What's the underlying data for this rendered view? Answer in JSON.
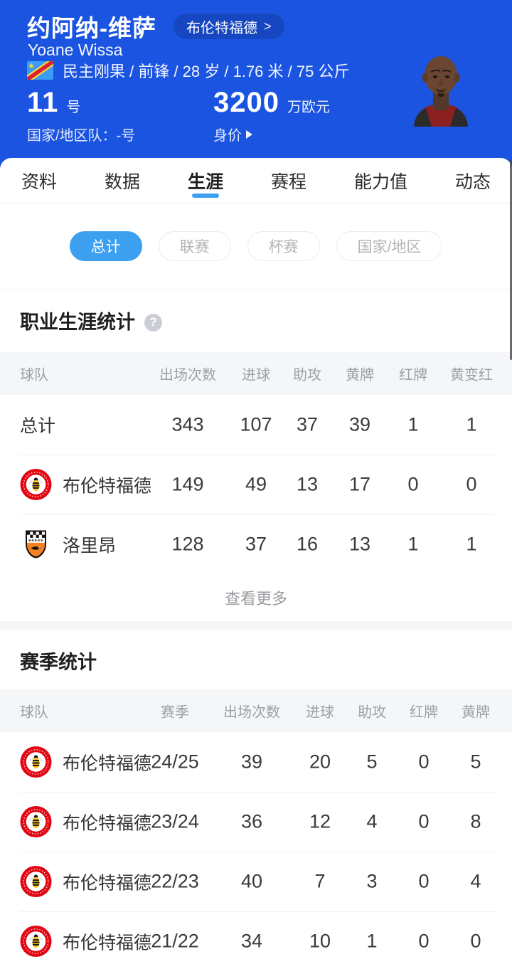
{
  "header": {
    "player_name_cn": "约阿纳-维萨",
    "club_chip": {
      "label": "布伦特福德",
      "chevron": ">"
    },
    "player_name_en": "Yoane Wissa",
    "flag_icon": "dr-congo-flag",
    "info_line": "民主刚果 / 前锋 / 28 岁 / 1.76 米 / 75 公斤",
    "shirt_number": "11",
    "shirt_number_suffix": "号",
    "national_team_line": "国家/地区队：-号",
    "market_value": "3200",
    "market_value_unit": "万欧元",
    "market_value_label": "身价",
    "photo_icon": "player-photo"
  },
  "tabs": {
    "items": [
      {
        "label": "资料",
        "active": false
      },
      {
        "label": "数据",
        "active": false
      },
      {
        "label": "生涯",
        "active": true
      },
      {
        "label": "赛程",
        "active": false
      },
      {
        "label": "能力值",
        "active": false
      },
      {
        "label": "动态",
        "active": false
      }
    ]
  },
  "filters": {
    "items": [
      {
        "label": "总计",
        "active": true
      },
      {
        "label": "联赛",
        "active": false
      },
      {
        "label": "杯赛",
        "active": false
      },
      {
        "label": "国家/地区",
        "active": false
      }
    ]
  },
  "career_section": {
    "title": "职业生涯统计",
    "help_icon": "question-mark",
    "columns": [
      "球队",
      "出场次数",
      "进球",
      "助攻",
      "黄牌",
      "红牌",
      "黄变红"
    ],
    "rows": [
      {
        "team": "总计",
        "logo": "",
        "values": [
          "343",
          "107",
          "37",
          "39",
          "1",
          "1"
        ]
      },
      {
        "team": "布伦特福德",
        "logo": "brentford",
        "values": [
          "149",
          "49",
          "13",
          "17",
          "0",
          "0"
        ]
      },
      {
        "team": "洛里昂",
        "logo": "lorient",
        "values": [
          "128",
          "37",
          "16",
          "13",
          "1",
          "1"
        ]
      }
    ],
    "view_more": "查看更多"
  },
  "season_section": {
    "title": "赛季统计",
    "columns": [
      "球队",
      "赛季",
      "出场次数",
      "进球",
      "助攻",
      "红牌",
      "黄牌"
    ],
    "rows": [
      {
        "team": "布伦特福德",
        "logo": "brentford",
        "values": [
          "24/25",
          "39",
          "20",
          "5",
          "0",
          "5"
        ]
      },
      {
        "team": "布伦特福德",
        "logo": "brentford",
        "values": [
          "23/24",
          "36",
          "12",
          "4",
          "0",
          "8"
        ]
      },
      {
        "team": "布伦特福德",
        "logo": "brentford",
        "values": [
          "22/23",
          "40",
          "7",
          "3",
          "0",
          "4"
        ]
      },
      {
        "team": "布伦特福德",
        "logo": "brentford",
        "values": [
          "21/22",
          "34",
          "10",
          "1",
          "0",
          "0"
        ]
      }
    ]
  },
  "colors": {
    "header_bg": "#1a54e0",
    "chip_bg": "#1647c0",
    "accent_blue": "#3d9ff0",
    "table_header_bg": "#f5f6f8",
    "brentford_red": "#e20613",
    "lorient_orange": "#f58220"
  }
}
